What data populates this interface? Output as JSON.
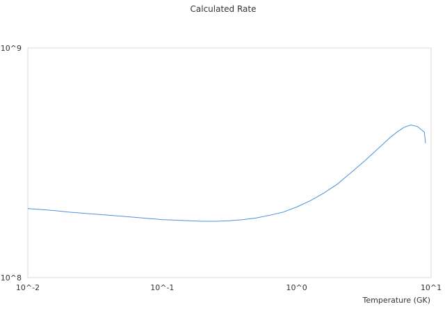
{
  "chart_data": {
    "type": "line",
    "title": "Calculated Rate",
    "xlabel": "Temperature (GK)",
    "ylabel": "",
    "x_scale": "log",
    "y_scale": "log",
    "xlim": [
      0.01,
      10
    ],
    "ylim": [
      100000000,
      1000000000
    ],
    "x_tick_values": [
      0.01,
      0.1,
      1,
      10
    ],
    "x_tick_labels": [
      "10^-2",
      "10^-1",
      "10^0",
      "10^1"
    ],
    "y_tick_values": [
      100000000,
      1000000000
    ],
    "y_tick_labels": [
      "10^8",
      "10^9"
    ],
    "grid": false,
    "legend": "none",
    "colors": {
      "line": "#4a90d9",
      "frame": "#d9d9d9",
      "text": "#333333"
    },
    "series": [
      {
        "x": [
          0.01,
          0.0126,
          0.0158,
          0.02,
          0.0251,
          0.0316,
          0.0398,
          0.0501,
          0.0631,
          0.0794,
          0.1,
          0.126,
          0.158,
          0.2,
          0.251,
          0.316,
          0.398,
          0.501,
          0.631,
          0.794,
          1.0,
          1.26,
          1.58,
          2.0,
          2.51,
          3.16,
          3.98,
          5.01,
          5.62,
          6.31,
          7.08,
          7.94,
          8.91,
          10.0
        ],
        "y": [
          200000000,
          198000000,
          196000000,
          193000000,
          191000000,
          189000000,
          187000000,
          185000000,
          183000000,
          181000000,
          179000000,
          178000000,
          177000000,
          176000000,
          176000000,
          177000000,
          179000000,
          182000000,
          187000000,
          193000000,
          203000000,
          216000000,
          233000000,
          255000000,
          285000000,
          320000000,
          362000000,
          410000000,
          432000000,
          452000000,
          462000000,
          455000000,
          430000000,
          385000000
        ]
      }
    ]
  }
}
